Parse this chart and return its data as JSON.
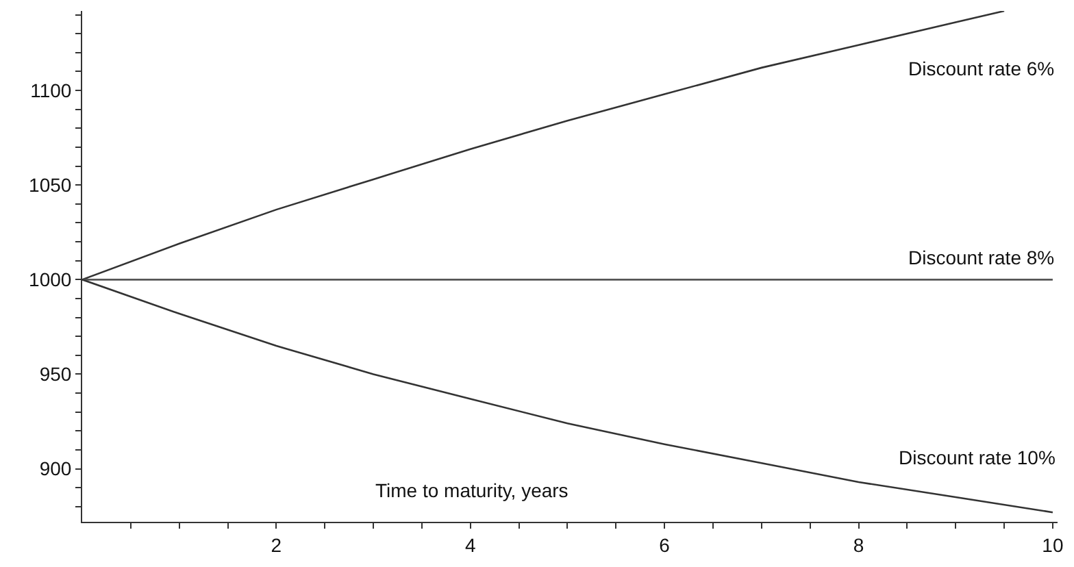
{
  "chart_data": {
    "type": "line",
    "xlabel": "Time to maturity, years",
    "x": [
      0,
      1,
      2,
      3,
      4,
      5,
      6,
      7,
      8,
      9,
      10
    ],
    "series": [
      {
        "name": "Discount rate 6%",
        "color": "#333333",
        "x": [
          0,
          1,
          2,
          3,
          4,
          5,
          6,
          7,
          8,
          9,
          9.5
        ],
        "values": [
          1000,
          1019,
          1037,
          1053,
          1069,
          1084,
          1098,
          1112,
          1124,
          1136,
          1142
        ]
      },
      {
        "name": "Discount rate 8%",
        "color": "#555555",
        "values": [
          1000,
          1000,
          1000,
          1000,
          1000,
          1000,
          1000,
          1000,
          1000,
          1000,
          1000
        ]
      },
      {
        "name": "Discount rate 10%",
        "color": "#333333",
        "values": [
          1000,
          982,
          965,
          950,
          937,
          924,
          913,
          903,
          893,
          885,
          877
        ]
      }
    ],
    "xlim": [
      0,
      10.05
    ],
    "ylim": [
      872,
      1142
    ],
    "xticks": [
      {
        "value": 0.5,
        "label": null
      },
      {
        "value": 1,
        "label": null
      },
      {
        "value": 1.5,
        "label": null
      },
      2,
      {
        "value": 2.5,
        "label": null
      },
      {
        "value": 3,
        "label": null
      },
      {
        "value": 3.5,
        "label": null
      },
      4,
      {
        "value": 4.5,
        "label": null
      },
      {
        "value": 5,
        "label": null
      },
      {
        "value": 5.5,
        "label": null
      },
      6,
      {
        "value": 6.5,
        "label": null
      },
      {
        "value": 7,
        "label": null
      },
      {
        "value": 7.5,
        "label": null
      },
      8,
      {
        "value": 8.5,
        "label": null
      },
      {
        "value": 9,
        "label": null
      },
      {
        "value": 9.5,
        "label": null
      },
      10
    ],
    "yticks": [
      {
        "value": 880,
        "label": null
      },
      {
        "value": 890,
        "label": null
      },
      900,
      {
        "value": 910,
        "label": null
      },
      {
        "value": 920,
        "label": null
      },
      {
        "value": 930,
        "label": null
      },
      {
        "value": 940,
        "label": null
      },
      950,
      {
        "value": 960,
        "label": null
      },
      {
        "value": 970,
        "label": null
      },
      {
        "value": 980,
        "label": null
      },
      {
        "value": 990,
        "label": null
      },
      1000,
      {
        "value": 1010,
        "label": null
      },
      {
        "value": 1020,
        "label": null
      },
      {
        "value": 1030,
        "label": null
      },
      {
        "value": 1040,
        "label": null
      },
      1050,
      {
        "value": 1060,
        "label": null
      },
      {
        "value": 1070,
        "label": null
      },
      {
        "value": 1080,
        "label": null
      },
      {
        "value": 1090,
        "label": null
      },
      1100,
      {
        "value": 1110,
        "label": null
      },
      {
        "value": 1120,
        "label": null
      },
      {
        "value": 1130,
        "label": null
      },
      {
        "value": 1140,
        "label": null
      }
    ],
    "legend": false,
    "marker": "none",
    "line_style": "solid"
  }
}
